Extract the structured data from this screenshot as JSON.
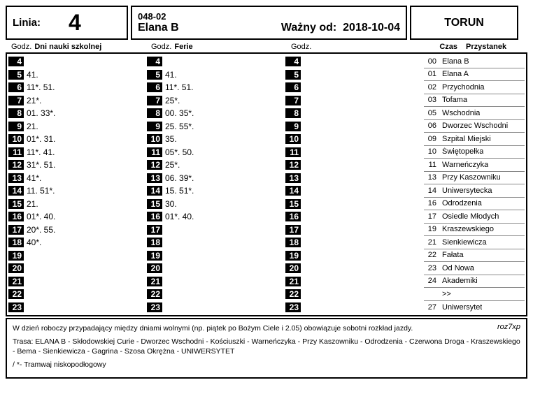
{
  "header": {
    "linia_label": "Linia:",
    "linia_number": "4",
    "stop_code": "048-02",
    "stop_name": "Elana B",
    "valid_label": "Ważny od:",
    "valid_date": "2018-10-04",
    "city": "TORUN"
  },
  "column_headers": {
    "godz": "Godz.",
    "school": "Dni nauki szkolnej",
    "ferie": "Ferie",
    "blank": "",
    "czas": "Czas",
    "przystanek": "Przystanek"
  },
  "hours": [
    "4",
    "5",
    "6",
    "7",
    "8",
    "9",
    "10",
    "11",
    "12",
    "13",
    "14",
    "15",
    "16",
    "17",
    "18",
    "19",
    "20",
    "21",
    "22",
    "23"
  ],
  "school_minutes": [
    "",
    "41.",
    "11*. 51.",
    "21*.",
    "01. 33*.",
    "21.",
    "01*. 31.",
    "11*. 41.",
    "31*. 51.",
    "41*.",
    "11. 51*.",
    "21.",
    "01*. 40.",
    "20*. 55.",
    "40*.",
    "",
    "",
    "",
    "",
    ""
  ],
  "ferie_minutes": [
    "",
    "41.",
    "11*. 51.",
    "25*.",
    "00. 35*.",
    "25. 55*.",
    "35.",
    "05*. 50.",
    "25*.",
    "06. 39*.",
    "15. 51*.",
    "30.",
    "01*. 40.",
    "",
    "",
    "",
    "",
    "",
    "",
    ""
  ],
  "blank_minutes": [
    "",
    "",
    "",
    "",
    "",
    "",
    "",
    "",
    "",
    "",
    "",
    "",
    "",
    "",
    "",
    "",
    "",
    "",
    "",
    ""
  ],
  "stops": [
    {
      "t": "00",
      "n": "Elana B"
    },
    {
      "t": "01",
      "n": "Elana A"
    },
    {
      "t": "02",
      "n": "Przychodnia"
    },
    {
      "t": "03",
      "n": "Tofama"
    },
    {
      "t": "05",
      "n": "Wschodnia"
    },
    {
      "t": "06",
      "n": "Dworzec Wschodni"
    },
    {
      "t": "09",
      "n": "Szpital Miejski"
    },
    {
      "t": "10",
      "n": "Świętopełka"
    },
    {
      "t": "11",
      "n": "Warneńczyka"
    },
    {
      "t": "13",
      "n": "Przy Kaszowniku"
    },
    {
      "t": "14",
      "n": "Uniwersytecka"
    },
    {
      "t": "16",
      "n": "Odrodzenia"
    },
    {
      "t": "17",
      "n": "Osiedle Młodych"
    },
    {
      "t": "19",
      "n": "Kraszewskiego"
    },
    {
      "t": "21",
      "n": "Sienkiewicza"
    },
    {
      "t": "22",
      "n": "Fałata"
    },
    {
      "t": "23",
      "n": "Od Nowa"
    },
    {
      "t": "24",
      "n": "Akademiki"
    },
    {
      "t": "",
      "n": ">>"
    },
    {
      "t": "27",
      "n": "Uniwersytet"
    }
  ],
  "footer": {
    "code": "roz7xp",
    "note1": "W dzień roboczy przypadający między dniami wolnymi (np. piątek po Bożym Ciele i 2.05) obowiązuje sobotni rozkład jazdy.",
    "route_label": "Trasa:",
    "route": "ELANA B - Skłodowskiej Curie - Dworzec Wschodni - Kościuszki - Warneńczyka - Przy Kaszowniku - Odrodzenia - Czerwona Droga - Kraszewskiego - Bema - Sienkiewicza - Gagrina - Szosa Okrężna - UNIWERSYTET",
    "note2": "/ *- Tramwaj niskopodłogowy"
  },
  "colors": {
    "black": "#000000",
    "white": "#ffffff",
    "grey": "#888888"
  }
}
